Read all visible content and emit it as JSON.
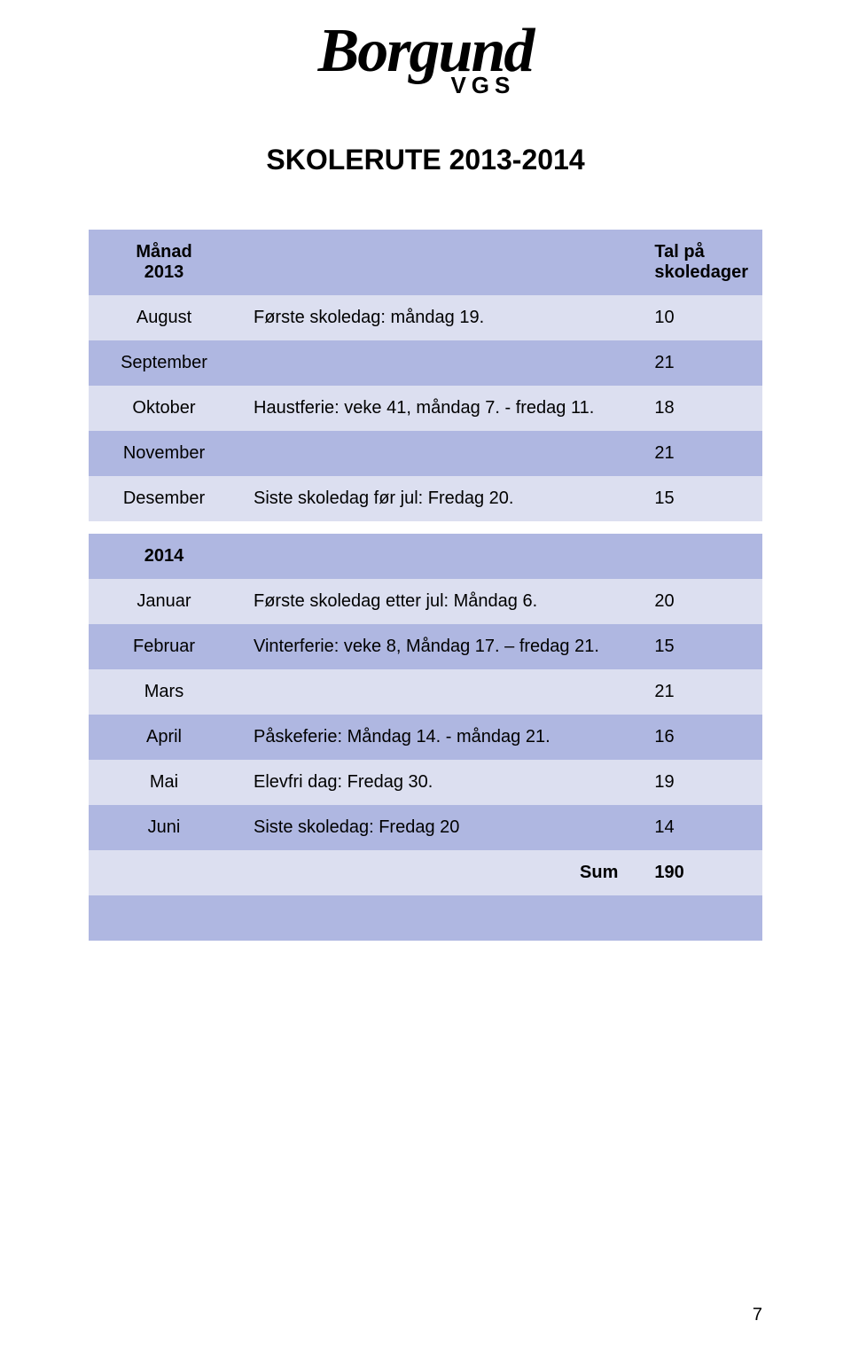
{
  "logo": {
    "main": "Borgund",
    "sub": "VGS"
  },
  "title": "SKOLERUTE 2013-2014",
  "header": {
    "month": "Månad\n2013",
    "desc": "",
    "days": "Tal på\nskoledager"
  },
  "rows_2013": [
    {
      "month": "August",
      "desc": "Første skoledag: måndag 19.",
      "days": "10",
      "shade": "light"
    },
    {
      "month": "September",
      "desc": "",
      "days": "21",
      "shade": "dark"
    },
    {
      "month": "Oktober",
      "desc": "Haustferie: veke 41, måndag 7. - fredag 11.",
      "days": "18",
      "shade": "light"
    },
    {
      "month": "November",
      "desc": "",
      "days": "21",
      "shade": "dark"
    },
    {
      "month": "Desember",
      "desc": "Siste skoledag før jul:  Fredag 20.",
      "days": "15",
      "shade": "light"
    }
  ],
  "header2": {
    "month": "2014",
    "desc": "",
    "days": ""
  },
  "rows_2014": [
    {
      "month": "Januar",
      "desc": "Første skoledag etter jul: Måndag 6.",
      "days": "20",
      "shade": "light"
    },
    {
      "month": "Februar",
      "desc": "Vinterferie: veke 8,  Måndag 17. – fredag 21.",
      "days": "15",
      "shade": "dark"
    },
    {
      "month": "Mars",
      "desc": "",
      "days": "21",
      "shade": "light"
    },
    {
      "month": "April",
      "desc": "Påskeferie: Måndag 14. - måndag 21.",
      "days": "16",
      "shade": "dark"
    },
    {
      "month": "Mai",
      "desc": "Elevfri dag: Fredag 30.",
      "days": "19",
      "shade": "light"
    },
    {
      "month": "Juni",
      "desc": "Siste skoledag:  Fredag 20",
      "days": "14",
      "shade": "dark"
    }
  ],
  "sum": {
    "label": "Sum",
    "value": "190"
  },
  "page_number": "7",
  "colors": {
    "header_bg": "#afb7e1",
    "dark_row": "#afb7e1",
    "light_row": "#dcdff0",
    "text": "#000000",
    "page_bg": "#ffffff"
  }
}
